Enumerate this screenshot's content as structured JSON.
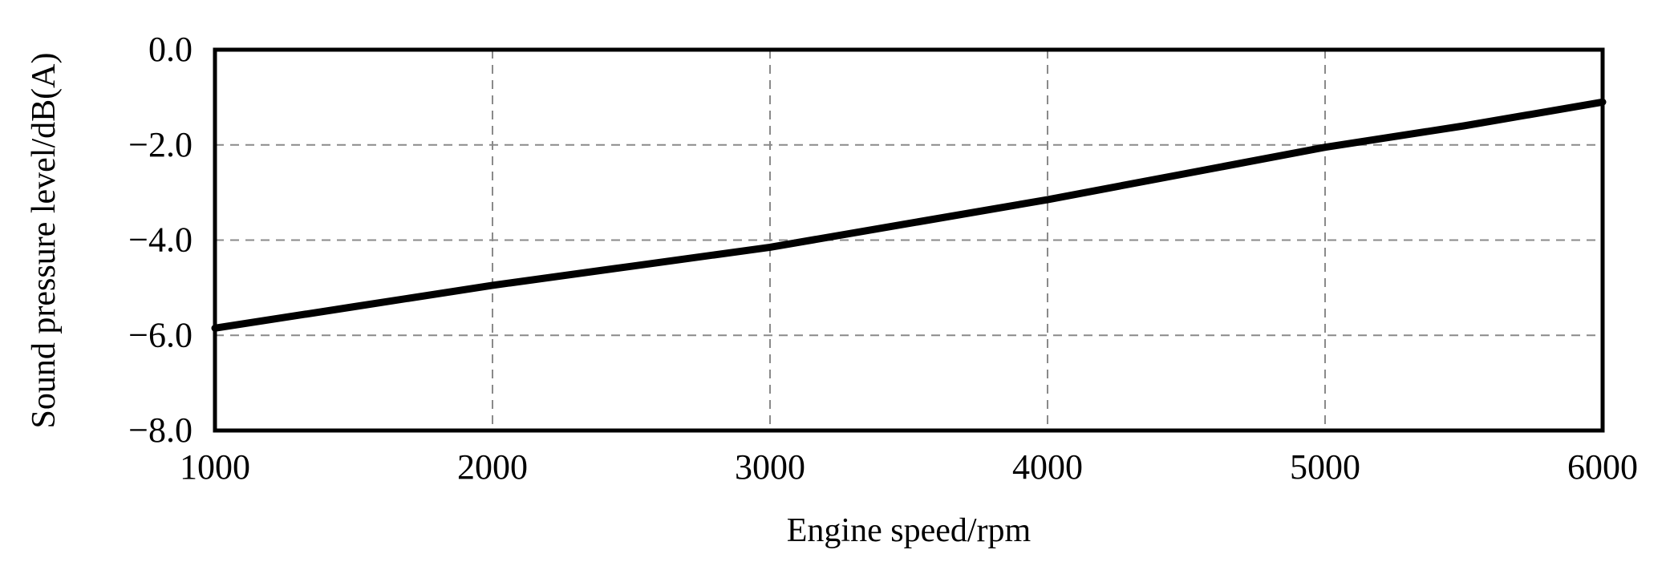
{
  "chart_data": {
    "type": "line",
    "title": "",
    "xlabel": "Engine speed/rpm",
    "ylabel": "Sound pressure level/dB(A)",
    "xlim": [
      1000,
      6000
    ],
    "ylim": [
      -8.0,
      0.0
    ],
    "x_ticks": [
      1000,
      2000,
      3000,
      4000,
      5000,
      6000
    ],
    "x_tick_labels": [
      "1000",
      "2000",
      "3000",
      "4000",
      "5000",
      "6000"
    ],
    "y_ticks": [
      0.0,
      -2.0,
      -4.0,
      -6.0,
      -8.0
    ],
    "y_tick_labels": [
      "0.0",
      "−2.0",
      "−4.0",
      "−6.0",
      "−8.0"
    ],
    "grid": true,
    "series": [
      {
        "x": [
          1000,
          1500,
          2000,
          2500,
          3000,
          3500,
          4000,
          4500,
          5000,
          5500,
          6000
        ],
        "y": [
          -5.85,
          -5.4,
          -4.95,
          -4.55,
          -4.15,
          -3.65,
          -3.15,
          -2.6,
          -2.05,
          -1.6,
          -1.1
        ],
        "color": "#000000"
      }
    ]
  }
}
